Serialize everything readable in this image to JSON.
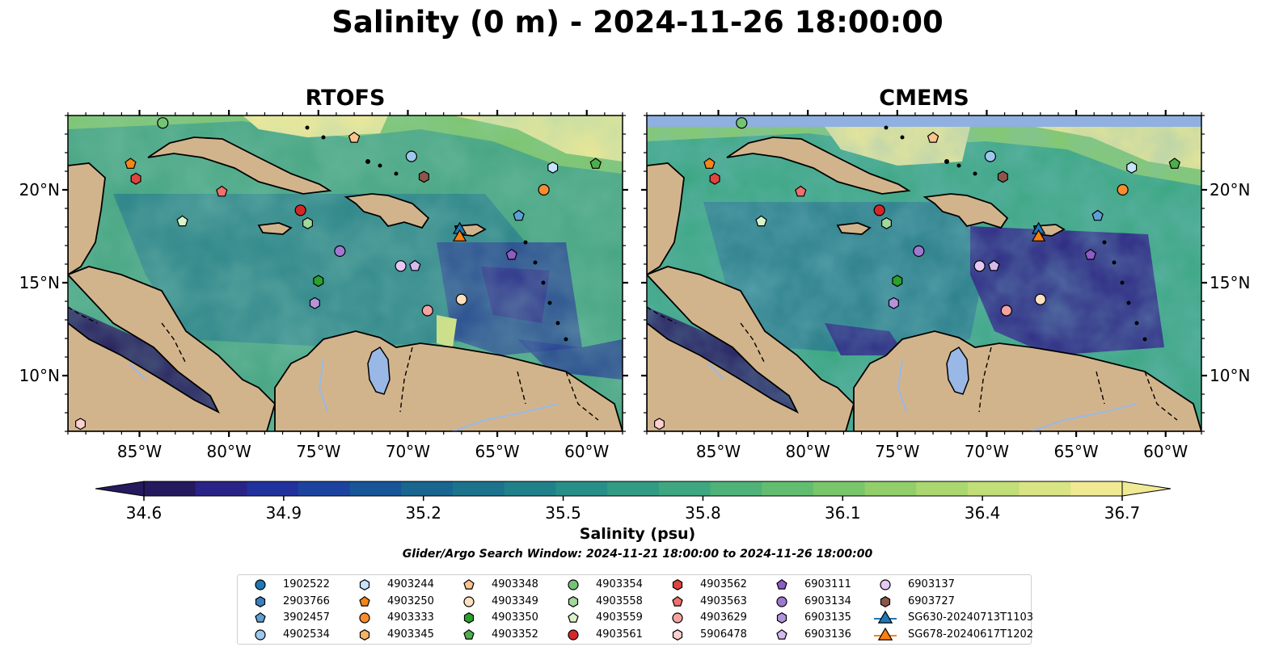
{
  "title": "Salinity (0 m) - 2024-11-26 18:00:00",
  "chart_data": {
    "type": "heatmap",
    "panels": [
      {
        "title": "RTOFS",
        "y_ticks_side": "left"
      },
      {
        "title": "CMEMS",
        "y_ticks_side": "right"
      }
    ],
    "extent": {
      "lon": [
        -89,
        -58
      ],
      "lat": [
        7,
        24
      ]
    },
    "x_ticks": [
      {
        "value": -85,
        "label": "85°W"
      },
      {
        "value": -80,
        "label": "80°W"
      },
      {
        "value": -75,
        "label": "75°W"
      },
      {
        "value": -70,
        "label": "70°W"
      },
      {
        "value": -65,
        "label": "65°W"
      },
      {
        "value": -60,
        "label": "60°W"
      }
    ],
    "y_ticks": [
      {
        "value": 20,
        "label": "20°N"
      },
      {
        "value": 15,
        "label": "15°N"
      },
      {
        "value": 10,
        "label": "10°N"
      }
    ],
    "colorbar": {
      "label": "Salinity (psu)",
      "range": [
        34.6,
        36.7
      ],
      "ticks": [
        "34.6",
        "34.9",
        "35.2",
        "35.5",
        "35.8",
        "36.1",
        "36.4",
        "36.7"
      ],
      "extend": "both",
      "colors": [
        "#261a5e",
        "#2a2486",
        "#22329c",
        "#1c449e",
        "#185697",
        "#1a6690",
        "#1d738c",
        "#21818b",
        "#288f88",
        "#319b83",
        "#3ea77f",
        "#4fb278",
        "#63bd70",
        "#7ac66b",
        "#92cf6b",
        "#aad76f",
        "#c2de78",
        "#d9e485",
        "#f0ea95"
      ]
    },
    "xlabel": "",
    "ylabel": "",
    "search_window": "Glider/Argo Search Window: 2024-11-21 18:00:00 to 2024-11-26 18:00:00",
    "colors": {
      "land": "#d2b48c",
      "lake": "#9ab8e6",
      "deep_ocean": "#241a5a",
      "cmems_nodata": "#8fb0e0"
    },
    "platforms": [
      {
        "id": "1902522",
        "marker": "circle",
        "color": "#1f77b4",
        "lon": null,
        "lat": null
      },
      {
        "id": "2903766",
        "marker": "hexagon",
        "color": "#3a7fc0",
        "lon": null,
        "lat": null
      },
      {
        "id": "3902457",
        "marker": "pentagon",
        "color": "#5e9fd6",
        "lon": -63.8,
        "lat": 18.6
      },
      {
        "id": "4902534",
        "marker": "circle",
        "color": "#9ec7ee",
        "lon": -69.8,
        "lat": 21.8
      },
      {
        "id": "4903244",
        "marker": "hexagon",
        "color": "#c6e4fb",
        "lon": -61.9,
        "lat": 21.2
      },
      {
        "id": "4903250",
        "marker": "pentagon",
        "color": "#f58518",
        "lon": -85.5,
        "lat": 21.4
      },
      {
        "id": "4903333",
        "marker": "circle",
        "color": "#f68d2e",
        "lon": -62.4,
        "lat": 20.0
      },
      {
        "id": "4903345",
        "marker": "hexagon",
        "color": "#f9b264",
        "lon": null,
        "lat": null
      },
      {
        "id": "4903348",
        "marker": "pentagon",
        "color": "#fbc48c",
        "lon": -73.0,
        "lat": 22.8
      },
      {
        "id": "4903349",
        "marker": "circle",
        "color": "#fde0bf",
        "lon": -67.0,
        "lat": 14.1
      },
      {
        "id": "4903350",
        "marker": "hexagon",
        "color": "#2ca02c",
        "lon": -75.0,
        "lat": 15.1
      },
      {
        "id": "4903352",
        "marker": "pentagon",
        "color": "#4daf4a",
        "lon": -59.5,
        "lat": 21.4
      },
      {
        "id": "4903354",
        "marker": "circle",
        "color": "#74c476",
        "lon": -83.7,
        "lat": 23.6
      },
      {
        "id": "4903558",
        "marker": "hexagon",
        "color": "#a1d99b",
        "lon": -75.6,
        "lat": 18.2
      },
      {
        "id": "4903559",
        "marker": "pentagon",
        "color": "#d9f2c9",
        "lon": -82.6,
        "lat": 18.3
      },
      {
        "id": "4903561",
        "marker": "circle",
        "color": "#d62728",
        "lon": -76.0,
        "lat": 18.9
      },
      {
        "id": "4903562",
        "marker": "hexagon",
        "color": "#e0443f",
        "lon": -85.2,
        "lat": 20.6
      },
      {
        "id": "4903563",
        "marker": "pentagon",
        "color": "#f0706b",
        "lon": -80.4,
        "lat": 19.9
      },
      {
        "id": "4903629",
        "marker": "circle",
        "color": "#f4a3a0",
        "lon": -68.9,
        "lat": 13.5
      },
      {
        "id": "5906478",
        "marker": "hexagon",
        "color": "#fbd0ce",
        "lon": -88.3,
        "lat": 7.4
      },
      {
        "id": "6903111",
        "marker": "pentagon",
        "color": "#8e5cc7",
        "lon": -64.2,
        "lat": 16.5
      },
      {
        "id": "6903134",
        "marker": "circle",
        "color": "#9f79cf",
        "lon": -73.8,
        "lat": 16.7
      },
      {
        "id": "6903135",
        "marker": "hexagon",
        "color": "#b593dc",
        "lon": -75.2,
        "lat": 13.9
      },
      {
        "id": "6903136",
        "marker": "pentagon",
        "color": "#d4baf0",
        "lon": -69.6,
        "lat": 15.9
      },
      {
        "id": "6903137",
        "marker": "circle",
        "color": "#e6c8f5",
        "lon": -70.4,
        "lat": 15.9
      },
      {
        "id": "6903727",
        "marker": "hexagon",
        "color": "#8c564b",
        "lon": -69.1,
        "lat": 20.7
      },
      {
        "id": "SG630-20240713T1103",
        "marker": "triangle",
        "color": "#1f77b4",
        "lon": -67.1,
        "lat": 17.9
      },
      {
        "id": "SG678-20240617T1202",
        "marker": "triangle",
        "color": "#ff7f0e",
        "lon": -67.1,
        "lat": 17.5
      }
    ]
  }
}
